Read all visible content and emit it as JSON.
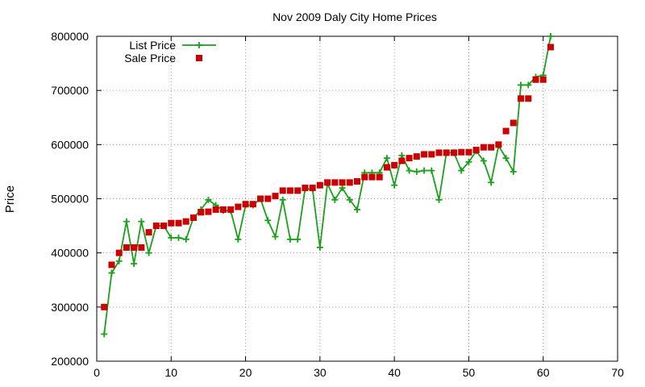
{
  "chart_data": {
    "type": "line",
    "title": "Nov 2009 Daly City Home Prices",
    "xlabel": "",
    "ylabel": "Price",
    "xlim": [
      0,
      70
    ],
    "ylim": [
      200000,
      800000
    ],
    "xticks": [
      0,
      10,
      20,
      30,
      40,
      50,
      60,
      70
    ],
    "yticks": [
      200000,
      300000,
      400000,
      500000,
      600000,
      700000,
      800000
    ],
    "xtick_labels": [
      "0",
      "10",
      "20",
      "30",
      "40",
      "50",
      "60",
      "70"
    ],
    "ytick_labels": [
      "200000",
      "300000",
      "400000",
      "500000",
      "600000",
      "700000",
      "800000"
    ],
    "grid": true,
    "legend_position": "top-left",
    "series": [
      {
        "name": "List Price",
        "style": "linespoints",
        "color": "#1aa01a",
        "x": [
          1,
          2,
          3,
          4,
          5,
          6,
          7,
          8,
          9,
          10,
          11,
          12,
          13,
          14,
          15,
          16,
          17,
          18,
          19,
          20,
          21,
          22,
          23,
          24,
          25,
          26,
          27,
          28,
          29,
          30,
          31,
          32,
          33,
          34,
          35,
          36,
          37,
          38,
          39,
          40,
          41,
          42,
          43,
          44,
          45,
          46,
          47,
          48,
          49,
          50,
          51,
          52,
          53,
          54,
          55,
          56,
          57,
          58,
          59,
          60,
          61
        ],
        "y": [
          250000,
          363000,
          385000,
          458000,
          380000,
          458000,
          400000,
          450000,
          450000,
          428000,
          428000,
          425000,
          465000,
          480000,
          498000,
          488000,
          478000,
          478000,
          425000,
          488000,
          488000,
          500000,
          460000,
          430000,
          498000,
          425000,
          425000,
          518000,
          518000,
          410000,
          528000,
          498000,
          520000,
          498000,
          480000,
          548000,
          548000,
          548000,
          575000,
          525000,
          580000,
          552000,
          550000,
          552000,
          552000,
          498000,
          585000,
          585000,
          552000,
          568000,
          588000,
          570000,
          530000,
          598000,
          575000,
          550000,
          710000,
          710000,
          725000,
          728000,
          800000
        ]
      },
      {
        "name": "Sale Price",
        "style": "points",
        "color": "#cc0000",
        "x": [
          1,
          2,
          3,
          4,
          5,
          6,
          7,
          8,
          9,
          10,
          11,
          12,
          13,
          14,
          15,
          16,
          17,
          18,
          19,
          20,
          21,
          22,
          23,
          24,
          25,
          26,
          27,
          28,
          29,
          30,
          31,
          32,
          33,
          34,
          35,
          36,
          37,
          38,
          39,
          40,
          41,
          42,
          43,
          44,
          45,
          46,
          47,
          48,
          49,
          50,
          51,
          52,
          53,
          54,
          55,
          56,
          57,
          58,
          59,
          60,
          61
        ],
        "y": [
          300000,
          378000,
          400000,
          410000,
          410000,
          410000,
          438000,
          450000,
          450000,
          455000,
          455000,
          458000,
          465000,
          475000,
          476000,
          480000,
          480000,
          480000,
          485000,
          490000,
          490000,
          500000,
          500000,
          505000,
          515000,
          515000,
          515000,
          520000,
          520000,
          525000,
          530000,
          530000,
          530000,
          530000,
          532000,
          540000,
          540000,
          540000,
          558000,
          562000,
          570000,
          575000,
          578000,
          582000,
          582000,
          585000,
          585000,
          585000,
          586000,
          586000,
          590000,
          595000,
          595000,
          600000,
          625000,
          640000,
          685000,
          685000,
          720000,
          720000,
          780000
        ]
      }
    ]
  }
}
